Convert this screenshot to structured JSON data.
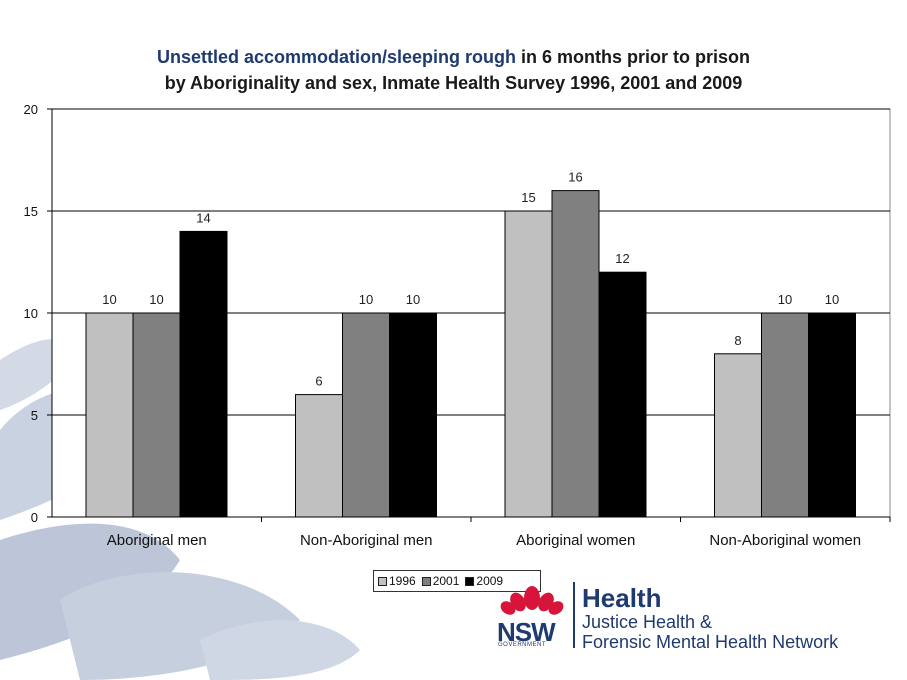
{
  "title": {
    "highlight": "Unsettled accommodation/sleeping rough",
    "rest_line1": " in 6 months prior to prison",
    "line2": "by Aboriginality and sex, Inmate Health Survey 1996, 2001 and 2009"
  },
  "chart_data": {
    "type": "bar",
    "categories": [
      "Aboriginal men",
      "Non-Aboriginal men",
      "Aboriginal women",
      "Non-Aboriginal women"
    ],
    "series": [
      {
        "name": "1996",
        "values": [
          10,
          6,
          15,
          8
        ],
        "color": "#c0c0c0"
      },
      {
        "name": "2001",
        "values": [
          10,
          10,
          16,
          10
        ],
        "color": "#808080"
      },
      {
        "name": "2009",
        "values": [
          14,
          10,
          12,
          10
        ],
        "color": "#000000"
      }
    ],
    "ylim": [
      0,
      20
    ],
    "yticks": [
      0,
      5,
      10,
      15,
      20
    ],
    "grid": true,
    "legend_position": "bottom"
  },
  "logo": {
    "health": "Health",
    "sub_line1": "Justice Health &",
    "sub_line2": "Forensic Mental Health Network",
    "nsw": "NSW",
    "government": "GOVERNMENT"
  }
}
